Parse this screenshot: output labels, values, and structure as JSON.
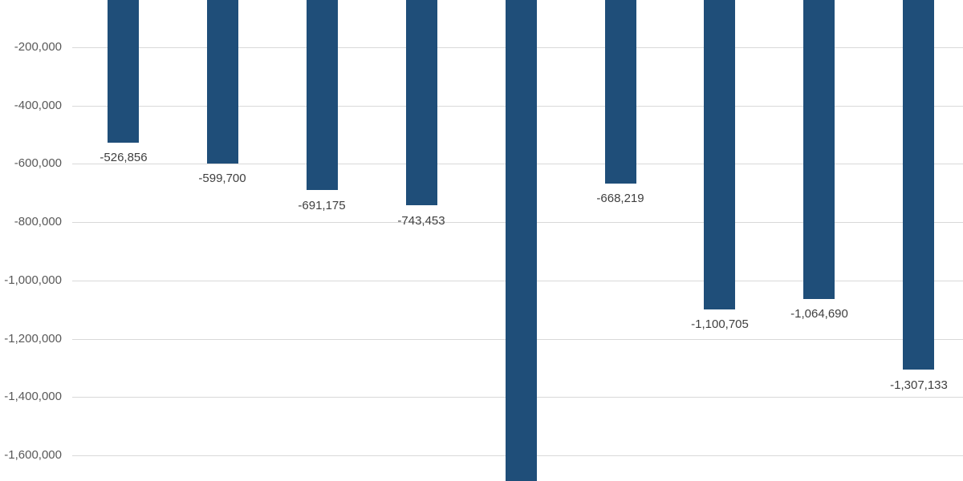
{
  "chart_data": {
    "type": "bar",
    "title": "",
    "xlabel": "",
    "ylabel": "",
    "categories": [
      "",
      "",
      "",
      "",
      "",
      "",
      "",
      "",
      ""
    ],
    "values": [
      -526856,
      -599700,
      -691175,
      -743453,
      null,
      -668219,
      -1100705,
      -1064690,
      -1307133
    ],
    "data_labels": [
      "-526,856",
      "-599,700",
      "-691,175",
      "-743,453",
      null,
      "-668,219",
      "-1,100,705",
      "-1,064,690",
      "-1,307,133"
    ],
    "y_ticks": [
      {
        "value": -200000,
        "label": "-200,000"
      },
      {
        "value": -400000,
        "label": "-400,000"
      },
      {
        "value": -600000,
        "label": "-600,000"
      },
      {
        "value": -800000,
        "label": "-800,000"
      },
      {
        "value": -1000000,
        "label": "-1,000,000"
      },
      {
        "value": -1200000,
        "label": "-1,200,000"
      },
      {
        "value": -1400000,
        "label": "-1,400,000"
      },
      {
        "value": -1600000,
        "label": "-1,600,000"
      }
    ],
    "grid": true,
    "legend": false,
    "ylim_visible": [
      -38000,
      -1690000
    ],
    "colors": {
      "bar": "#1F4E79",
      "gridline": "#D9D9D9",
      "axis_label": "#595959",
      "data_label": "#3F3F3F",
      "background": "#FFFFFF"
    },
    "clipping": {
      "zero_baseline_above_top": true,
      "bar_index_clipped_at_bottom": 4
    }
  }
}
